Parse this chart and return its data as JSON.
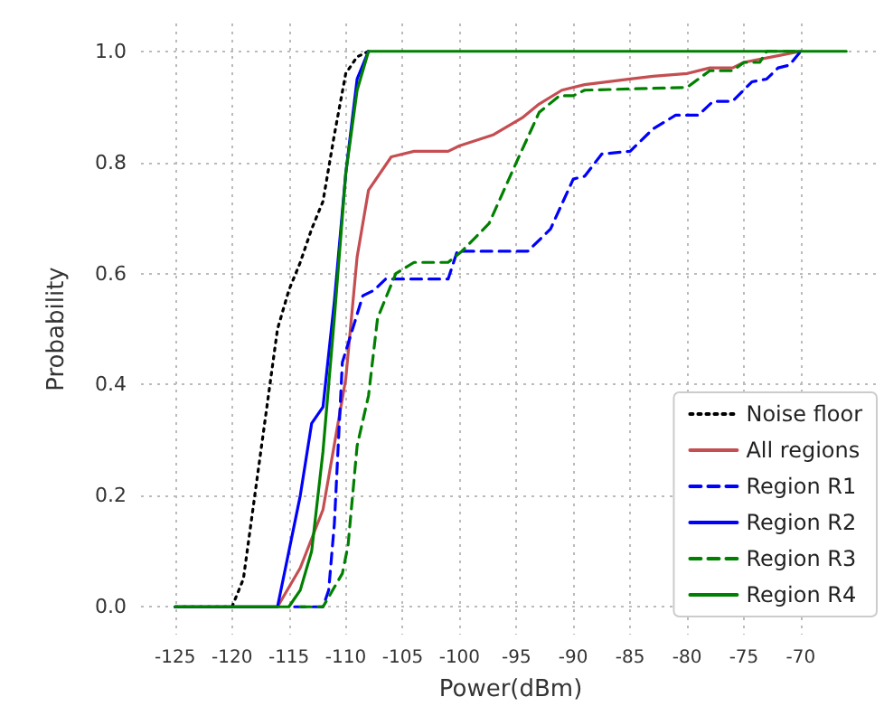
{
  "chart_data": {
    "type": "line",
    "xlabel": "Power(dBm)",
    "ylabel": "Probability",
    "xlim": [
      -128,
      -63
    ],
    "xticks": [
      -125,
      -120,
      -115,
      -110,
      -105,
      -100,
      -95,
      -90,
      -85,
      -80,
      -75,
      -70
    ],
    "ylim": [
      -0.05,
      1.05
    ],
    "yticks": [
      {
        "value": 0,
        "label": "0.0"
      },
      {
        "value": 0.2,
        "label": "0.2"
      },
      {
        "value": 0.4,
        "label": "0.4"
      },
      {
        "value": 0.6,
        "label": "0.6"
      },
      {
        "value": 0.8,
        "label": "0.8"
      },
      {
        "value": 1,
        "label": "1.0"
      }
    ],
    "grid": true,
    "legend": "bottom right",
    "marker": "none",
    "series": [
      {
        "name": "Noise floor",
        "color": "#000000",
        "line_style": "dotted",
        "x": [
          -125,
          -120,
          -119,
          -118,
          -117,
          -116,
          -115,
          -114,
          -113,
          -112,
          -111,
          -110,
          -109,
          -108
        ],
        "values": [
          0,
          0,
          0.05,
          0.2,
          0.35,
          0.5,
          0.57,
          0.62,
          0.68,
          0.73,
          0.85,
          0.96,
          0.99,
          1.0
        ]
      },
      {
        "name": "All regions",
        "color": "#c44e52",
        "line_style": "solid",
        "x": [
          -125,
          -116,
          -114,
          -112,
          -110,
          -109,
          -108,
          -106,
          -104,
          -101,
          -100,
          -97,
          -94.5,
          -93,
          -91,
          -89,
          -85,
          -83,
          -80,
          -78,
          -76,
          -75,
          -72.5,
          -70
        ],
        "values": [
          0,
          0,
          0.07,
          0.175,
          0.41,
          0.63,
          0.75,
          0.81,
          0.82,
          0.82,
          0.83,
          0.85,
          0.88,
          0.905,
          0.93,
          0.94,
          0.95,
          0.955,
          0.96,
          0.97,
          0.97,
          0.98,
          0.99,
          1.0
        ]
      },
      {
        "name": "Region R1",
        "color": "#0000ff",
        "line_style": "dashed",
        "x": [
          -114.5,
          -112,
          -111.5,
          -111,
          -110.3,
          -110,
          -108.5,
          -107.5,
          -106.5,
          -101,
          -100.2,
          -94,
          -92,
          -90,
          -89,
          -87.5,
          -85,
          -83,
          -81,
          -79,
          -77.7,
          -76,
          -74.3,
          -73,
          -72,
          -71,
          -70
        ],
        "values": [
          0,
          0,
          0.03,
          0.15,
          0.44,
          0.46,
          0.56,
          0.57,
          0.59,
          0.59,
          0.64,
          0.64,
          0.68,
          0.77,
          0.775,
          0.815,
          0.82,
          0.86,
          0.885,
          0.885,
          0.91,
          0.91,
          0.945,
          0.95,
          0.97,
          0.975,
          1.0
        ]
      },
      {
        "name": "Region R2",
        "color": "#0000ff",
        "line_style": "solid",
        "x": [
          -125,
          -116,
          -115,
          -114,
          -113,
          -112,
          -111,
          -110,
          -109,
          -108
        ],
        "values": [
          0,
          0,
          0.1,
          0.2,
          0.33,
          0.36,
          0.55,
          0.78,
          0.95,
          1.0
        ]
      },
      {
        "name": "Region R3",
        "color": "#008000",
        "line_style": "dashed",
        "x": [
          -114,
          -112,
          -110.3,
          -109.8,
          -109,
          -108,
          -107.2,
          -105.6,
          -104,
          -101,
          -99.8,
          -97.4,
          -95,
          -93,
          -91.2,
          -90,
          -89,
          -80,
          -78,
          -76,
          -75,
          -73.6,
          -73,
          -70
        ],
        "values": [
          0,
          0,
          0.06,
          0.11,
          0.29,
          0.38,
          0.52,
          0.6,
          0.62,
          0.62,
          0.64,
          0.69,
          0.8,
          0.89,
          0.92,
          0.92,
          0.93,
          0.935,
          0.965,
          0.965,
          0.98,
          0.98,
          1.0,
          1.0
        ]
      },
      {
        "name": "Region R4",
        "color": "#008000",
        "line_style": "solid",
        "x": [
          -125,
          -115,
          -114,
          -113,
          -112,
          -111,
          -110,
          -109,
          -108,
          -66
        ],
        "values": [
          0,
          0,
          0.03,
          0.1,
          0.28,
          0.52,
          0.78,
          0.93,
          1.0,
          1.0
        ]
      }
    ]
  }
}
